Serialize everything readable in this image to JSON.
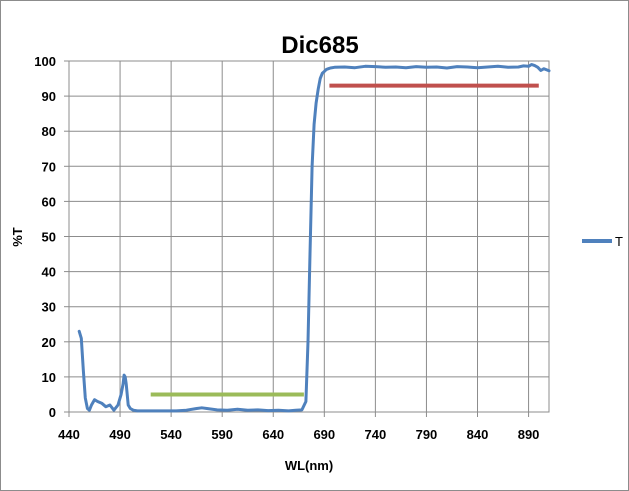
{
  "chart_data": {
    "type": "line",
    "title": "Dic685",
    "xlabel": "WL(nm)",
    "ylabel": "%T",
    "xlim": [
      440,
      910
    ],
    "ylim": [
      0,
      100
    ],
    "x_ticks": [
      440,
      490,
      540,
      590,
      640,
      690,
      740,
      790,
      840,
      890
    ],
    "y_ticks": [
      0,
      10,
      20,
      30,
      40,
      50,
      60,
      70,
      80,
      90,
      100
    ],
    "grid": true,
    "legend_position": "right",
    "series": [
      {
        "name": "T",
        "color": "#4f81bd",
        "x": [
          450,
          452,
          454,
          456,
          458,
          460,
          462,
          465,
          468,
          472,
          476,
          480,
          484,
          488,
          491,
          493,
          494,
          495,
          496,
          497,
          498,
          500,
          503,
          507,
          515,
          525,
          535,
          545,
          555,
          565,
          570,
          575,
          585,
          595,
          605,
          615,
          625,
          635,
          645,
          655,
          662,
          668,
          672,
          674,
          676,
          678,
          680,
          682,
          684,
          686,
          688,
          690,
          692,
          694,
          696,
          700,
          710,
          720,
          730,
          740,
          750,
          760,
          770,
          780,
          790,
          800,
          810,
          820,
          830,
          840,
          850,
          860,
          870,
          880,
          885,
          890,
          893,
          896,
          899,
          902,
          905,
          910
        ],
        "y": [
          23,
          21,
          12,
          4,
          1,
          0.5,
          2,
          3.5,
          3,
          2.5,
          1.5,
          2,
          0.5,
          2,
          5,
          8,
          10.5,
          10,
          8,
          5,
          2,
          1,
          0.5,
          0.3,
          0.3,
          0.3,
          0.3,
          0.3,
          0.5,
          1,
          1.2,
          1,
          0.6,
          0.5,
          0.8,
          0.5,
          0.6,
          0.4,
          0.5,
          0.3,
          0.5,
          0.6,
          3,
          20,
          45,
          70,
          82,
          88,
          92,
          95,
          96.5,
          97,
          97.6,
          97.8,
          98,
          98.2,
          98.3,
          98.1,
          98.5,
          98.4,
          98.2,
          98.3,
          98.1,
          98.4,
          98.2,
          98.3,
          98,
          98.4,
          98.3,
          98.1,
          98.3,
          98.5,
          98.2,
          98.3,
          98.6,
          98.5,
          99,
          98.7,
          98.2,
          97.3,
          97.8,
          97.2
        ]
      }
    ],
    "annotations": [
      {
        "type": "segment",
        "color": "#9bbb59",
        "x": [
          520,
          670
        ],
        "y": [
          5,
          5
        ]
      },
      {
        "type": "segment",
        "color": "#c0504d",
        "x": [
          695,
          900
        ],
        "y": [
          93,
          93
        ]
      }
    ]
  }
}
